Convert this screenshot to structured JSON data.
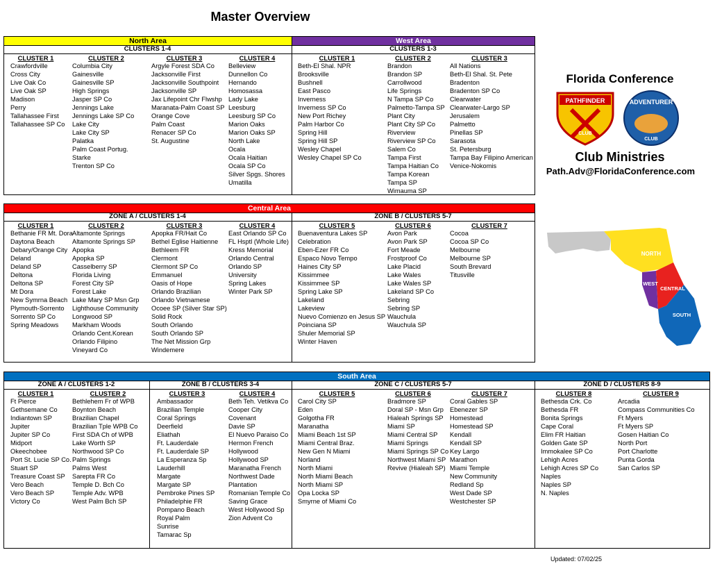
{
  "title": "Master Overview",
  "areas": [
    {
      "name": "North Area",
      "sections": [
        {
          "heading": "CLUSTERS 1-4",
          "clusters": [
            {
              "name": "CLUSTER 1",
              "churches": [
                "Crawfordville",
                "Cross City",
                "Live Oak Co",
                "Live Oak SP",
                "Madison",
                "Perry",
                "Tallahassee First",
                "Tallahassee SP Co"
              ]
            },
            {
              "name": "CLUSTER 2",
              "churches": [
                "Columbia City",
                "Gainesville",
                "Gainesville SP",
                "High Springs",
                "Jasper SP Co",
                "Jennings Lake",
                "Jennings Lake SP Co",
                "Lake City",
                "Lake City SP",
                "Palatka",
                "Palm Coast Portug.",
                "Starke",
                "Trenton SP Co"
              ]
            },
            {
              "name": "CLUSTER 3",
              "churches": [
                "Argyle Forest SDA Co",
                "Jacksonville First",
                "Jacksonville Southpoint",
                "Jacksonville SP",
                "Jax Lifepoint Chr Flwshp",
                "Maranata-Palm Coast SP",
                "Orange Cove",
                "Palm Coast",
                "Renacer SP Co",
                "St. Augustine"
              ]
            },
            {
              "name": "CLUSTER 4",
              "churches": [
                "Belleview",
                "Dunnellon Co",
                "Hernando",
                "Homosassa",
                "Lady Lake",
                "Leesburg",
                "Leesburg SP Co",
                "Marion Oaks",
                "Marion Oaks SP",
                "North Lake",
                "Ocala",
                "Ocala Haitian",
                "Ocala SP Co",
                "Silver Spgs. Shores",
                "Umatilla"
              ]
            }
          ]
        }
      ]
    },
    {
      "name": "West Area",
      "sections": [
        {
          "heading": "CLUSTERS 1-3",
          "clusters": [
            {
              "name": "CLUSTER 1",
              "churches": [
                "Beth-El Shal. NPR",
                "Brooksville",
                "Bushnell",
                "East Pasco",
                "Inverness",
                "Inverness SP Co",
                "New Port Richey",
                "Palm Harbor Co",
                "Spring Hill",
                "Spring Hill SP",
                "Wesley Chapel",
                "Wesley Chapel SP Co"
              ]
            },
            {
              "name": "CLUSTER 2",
              "churches": [
                "Brandon",
                "Brandon SP",
                "Carrollwood",
                "Life Springs",
                "N Tampa SP Co",
                "Palmetto-Tampa SP",
                "Plant City",
                "Plant City SP Co",
                "Riverview",
                "Riverview SP Co",
                "Salem Co",
                "Tampa First",
                "Tampa Haitian Co",
                "Tampa Korean",
                "Tampa SP",
                "Wimauma SP"
              ]
            },
            {
              "name": "CLUSTER 3",
              "churches": [
                "All Nations",
                "Beth-El Shal. St. Pete",
                "Bradenton",
                "Bradenton SP Co",
                "Clearwater",
                "Clearwater-Largo SP",
                "Jerusalem",
                "Palmetto",
                "Pinellas SP",
                "Sarasota",
                "St. Petersburg",
                "Tampa Bay Filipino American",
                "Venice-Nokomis"
              ]
            }
          ]
        }
      ]
    },
    {
      "name": "Central Area",
      "sections": [
        {
          "heading": "ZONE A / CLUSTERS 1-4",
          "clusters": [
            {
              "name": "CLUSTER 1",
              "churches": [
                "Bethanie FR Mt. Dora",
                "Daytona Beach",
                "Debary/Orange City",
                "Deland",
                "Deland SP",
                "Deltona",
                "Deltona SP",
                "Mt Dora",
                "New Symrna Beach",
                "Plymouth-Sorrento",
                "Sorrento SP Co",
                "Spring Meadows"
              ]
            },
            {
              "name": "CLUSTER 2",
              "churches": [
                "Altamonte Springs",
                "Altamonte Springs SP",
                "Apopka",
                "Apopka SP",
                "Casselberry SP",
                "Florida Living",
                "Forest City SP",
                "Forest Lake",
                "Lake Mary SP Msn Grp",
                "Lighthouse Community",
                "Longwood SP",
                "Markham Woods",
                "Orlando Cent.Korean",
                "Orlando Filipino",
                "Vineyard Co"
              ]
            },
            {
              "name": "CLUSTER 3",
              "churches": [
                "Apopka FR/Hait Co",
                "Bethel Eglise Haitienne",
                "Bethleem FR",
                "Clermont",
                "Clermont SP Co",
                "Emmanuel",
                "Oasis of Hope",
                "Orlando Brazilian",
                "Orlando Vietnamese",
                "Ocoee SP (Silver Star SP)",
                "Solid Rock",
                "South Orlando",
                "South Orlando SP",
                "The Net Mission Grp",
                "Windemere"
              ]
            },
            {
              "name": "CLUSTER 4",
              "churches": [
                "East Orlando SP Co",
                "FL Hsptl (Whole Life)",
                "Kress Memorial",
                "Orlando Central",
                "Orlando SP",
                "University",
                "Spring Lakes",
                "Winter Park SP"
              ]
            }
          ]
        },
        {
          "heading": "ZONE B / CLUSTERS 5-7",
          "clusters": [
            {
              "name": "CLUSTER 5",
              "churches": [
                "Buenaventura Lakes SP",
                "Celebration",
                "Eben-Ezer FR Co",
                "Espaco Novo Tempo",
                "Haines City SP",
                "Kissimmee",
                "Kissimmee SP",
                "Spring Lake SP",
                "Lakeland",
                "Lakeview",
                "Nuevo Comienzo en Jesus SP",
                "Poinciana SP",
                "Shuler Memorial SP",
                "Winter Haven"
              ]
            },
            {
              "name": "CLUSTER 6",
              "churches": [
                "Avon Park",
                "Avon Park  SP",
                "Fort Meade",
                "Frostproof Co",
                "Lake Placid",
                "Lake Wales",
                "Lake Wales SP",
                "Lakeland SP Co",
                "Sebring",
                "Sebring SP",
                "Wauchula",
                "Wauchula SP"
              ]
            },
            {
              "name": "CLUSTER 7",
              "churches": [
                "Cocoa",
                "Cocoa SP Co",
                "Melbourne",
                "Melbourne SP",
                "South Brevard",
                "Titusville"
              ]
            }
          ]
        }
      ]
    },
    {
      "name": "South Area",
      "sections": [
        {
          "heading": "ZONE A / CLUSTERS 1-2",
          "clusters": [
            {
              "name": "CLUSTER 1",
              "churches": [
                "Ft Pierce",
                "Gethsemane Co",
                "Indiantown SP",
                "Jupiter",
                "Jupiter SP Co",
                "Midport",
                "Okeechobee",
                "Port St. Lucie SP Co.",
                "Stuart SP",
                "Treasure Coast SP",
                "Vero Beach",
                "Vero Beach SP",
                "Victory Co"
              ]
            },
            {
              "name": "CLUSTER 2",
              "churches": [
                "Bethlehem Fr of WPB",
                "Boynton Beach",
                "Brazilian Chapel",
                "Brazilian Tple WPB Co",
                "First SDA Ch of WPB",
                "Lake Worth SP",
                "Northwood SP Co",
                "Palm Springs",
                "Palms West",
                "Sarepta FR Co",
                "Temple D. Bch Co",
                "Temple Adv. WPB",
                "West Palm Bch SP"
              ]
            }
          ]
        },
        {
          "heading": "ZONE B / CLUSTERS 3-4",
          "clusters": [
            {
              "name": "CLUSTER 3",
              "churches": [
                "Ambassador",
                "Brazilian Temple",
                "Coral Springs",
                "Deerfield",
                "Eliathah",
                "Ft. Lauderdale",
                "Ft. Lauderdale SP",
                "La Esperanza Sp",
                "Lauderhill",
                "Margate",
                "Margate SP",
                "Pembroke Pines SP",
                "Philadelphie FR",
                "Pompano Beach",
                "Royal Palm",
                "Sunrise",
                "Tamarac Sp"
              ]
            },
            {
              "name": "CLUSTER 4",
              "churches": [
                "Beth Teh. Vetikva Co",
                "Cooper City",
                "Covenant",
                "Davie SP",
                "El Nuevo Paraiso Co",
                "Hermon French",
                "Hollywood",
                "Hollywood SP",
                "Maranatha French",
                "Northwest Dade",
                "Plantation",
                "Romanian Temple Co",
                "Saving Grace",
                "West Hollywood Sp",
                "Zion Advent Co"
              ]
            }
          ]
        },
        {
          "heading": "ZONE C / CLUSTERS 5-7",
          "clusters": [
            {
              "name": "CLUSTER 5",
              "churches": [
                "Carol City SP",
                "Eden",
                "Golgotha FR",
                "Maranatha",
                "Miami Beach 1st SP",
                "Miami Central Braz.",
                "New Gen N Miami",
                "Norland",
                "North Miami",
                "North Miami Beach",
                "North Miami SP",
                "Opa Locka SP",
                "Smyrne of Miami Co"
              ]
            },
            {
              "name": "CLUSTER 6",
              "churches": [
                "Bradmore SP",
                "Doral SP - Msn Grp",
                "Hialeah Springs SP",
                "Miami SP",
                "Miami Central SP",
                "Miami Springs",
                "Miami Springs SP Co",
                "Northwest Miami SP",
                "Revive (Hialeah SP)"
              ]
            },
            {
              "name": "CLUSTER 7",
              "churches": [
                "Coral Gables SP",
                "Ebenezer SP",
                "Homestead",
                "Homestead SP",
                "Kendall",
                "Kendall SP",
                "Key Largo",
                "Marathon",
                "Miami Temple",
                "New Community",
                "Redland Sp",
                "West Dade SP",
                "Westchester SP"
              ]
            }
          ]
        },
        {
          "heading": "ZONE D / CLUSTERS 8-9",
          "clusters": [
            {
              "name": "CLUSTER 8",
              "churches": [
                "Bethesda Crk. Co",
                "Bethesda FR",
                "Bonita Springs",
                "Cape Coral",
                "Elim FR Haitian",
                "Golden Gate SP",
                "Immokalee SP Co",
                "Lehigh Acres",
                "Lehigh Acres SP Co",
                "Naples",
                "Naples SP",
                "N. Naples"
              ]
            },
            {
              "name": "CLUSTER 9",
              "churches": [
                "Arcadia",
                "Compass Communities Co",
                "Ft Myers",
                "Ft Myers SP",
                "Gosen Haitian Co",
                "North Port",
                "Port Charlotte",
                "Punta Gorda",
                "San Carlos SP"
              ]
            }
          ]
        }
      ]
    }
  ],
  "sidebar": {
    "conference": "Florida Conference",
    "logos": [
      {
        "top": "PATHFINDER",
        "bottom": "CLUB"
      },
      {
        "top": "ADVENTURER",
        "bottom": "CLUB"
      }
    ],
    "ministry": "Club Ministries",
    "email": "Path.Adv@FloridaConference.com"
  },
  "map": {
    "labels": [
      "NORTH",
      "WEST",
      "CENTRAL",
      "SOUTH"
    ]
  },
  "updated": "Updated: 07/02/25"
}
